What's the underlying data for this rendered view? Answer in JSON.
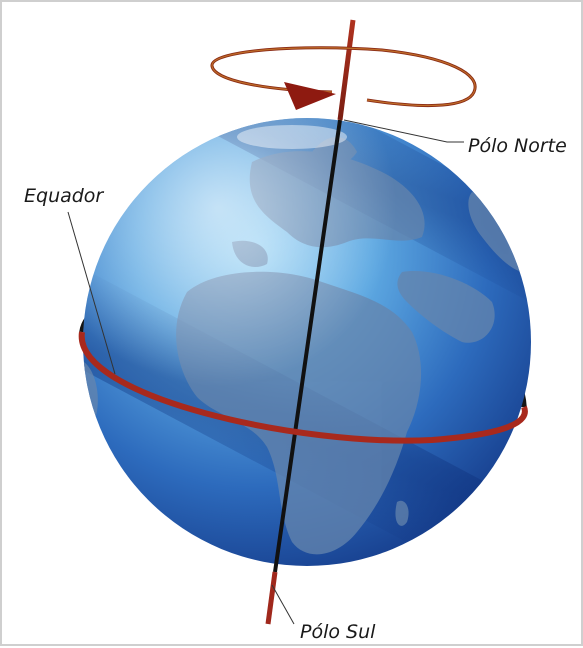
{
  "labels": {
    "north_pole": "Pólo Norte",
    "south_pole": "Pólo Sul",
    "equator": "Equador"
  },
  "colors": {
    "axis_red": "#a0281c",
    "axis_dark": "#111111",
    "ring_dark": "#151515",
    "ring_red": "#a8291d",
    "ocean_light": "#7fc4ee",
    "ocean_mid": "#3f83c9",
    "ocean_dark": "#163f8f",
    "land": "#5e7fa8"
  },
  "icons": {
    "rotation_arrow": "rotation-arrow-icon"
  }
}
